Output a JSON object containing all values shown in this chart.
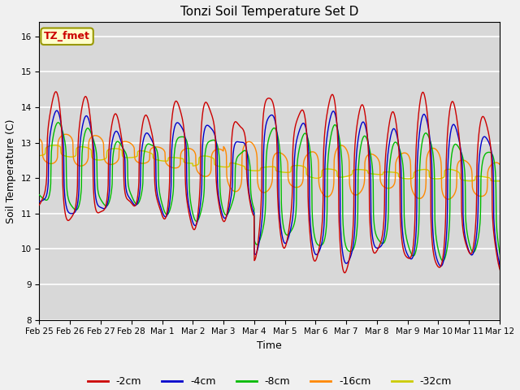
{
  "title": "Tonzi Soil Temperature Set D",
  "xlabel": "Time",
  "ylabel": "Soil Temperature (C)",
  "annotation": "TZ_fmet",
  "ylim": [
    8.0,
    16.4
  ],
  "yticks": [
    8.0,
    9.0,
    10.0,
    11.0,
    12.0,
    13.0,
    14.0,
    15.0,
    16.0
  ],
  "colors": {
    "-2cm": "#cc0000",
    "-4cm": "#0000cc",
    "-8cm": "#00bb00",
    "-16cm": "#ff8800",
    "-32cm": "#cccc00"
  },
  "legend_labels": [
    "-2cm",
    "-4cm",
    "-8cm",
    "-16cm",
    "-32cm"
  ],
  "bg_color": "#d8d8d8",
  "fig_color": "#f0f0f0",
  "xtick_labels": [
    "Feb 25",
    "Feb 26",
    "Feb 27",
    "Feb 28",
    "Mar 1",
    "Mar 2",
    "Mar 3",
    "Mar 4",
    "Mar 5",
    "Mar 6",
    "Mar 7",
    "Mar 8",
    "Mar 9",
    "Mar 10",
    "Mar 11",
    "Mar 12"
  ],
  "n_days": 16
}
